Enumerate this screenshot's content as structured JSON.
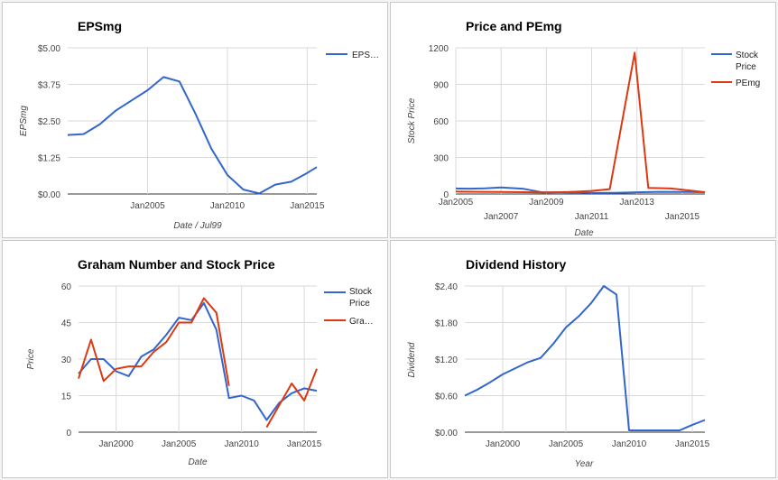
{
  "chart_data": [
    {
      "type": "line",
      "title": "EPSmg",
      "xlabel": "Date / Jul99",
      "ylabel": "EPSmg",
      "x_ticks": [
        "Jan2005",
        "Jan2010",
        "Jan2015"
      ],
      "y_ticks": [
        "$0.00",
        "$1.25",
        "$2.50",
        "$3.75",
        "$5.00"
      ],
      "ylim": [
        0,
        5
      ],
      "grid": true,
      "legend_position": "right",
      "series": [
        {
          "name": "EPS…",
          "color": "#3366cc",
          "points": [
            [
              2000.0,
              2.02
            ],
            [
              2001.0,
              2.05
            ],
            [
              2002.0,
              2.38
            ],
            [
              2003.0,
              2.85
            ],
            [
              2004.0,
              3.2
            ],
            [
              2005.0,
              3.55
            ],
            [
              2006.0,
              4.0
            ],
            [
              2007.0,
              3.85
            ],
            [
              2008.0,
              2.75
            ],
            [
              2009.0,
              1.55
            ],
            [
              2010.0,
              0.65
            ],
            [
              2011.0,
              0.15
            ],
            [
              2012.0,
              0.02
            ],
            [
              2013.0,
              0.32
            ],
            [
              2014.0,
              0.42
            ],
            [
              2015.0,
              0.72
            ],
            [
              2015.6,
              0.92
            ]
          ]
        }
      ]
    },
    {
      "type": "line",
      "title": "Price and PEmg",
      "xlabel": "Date",
      "ylabel": "Stock Price",
      "x_ticks": [
        "Jan2005",
        "Jan2007",
        "Jan2009",
        "Jan2011",
        "Jan2013",
        "Jan2015"
      ],
      "y_ticks": [
        "0",
        "300",
        "600",
        "900",
        "1200"
      ],
      "ylim": [
        0,
        1200
      ],
      "grid": true,
      "legend_position": "right",
      "series": [
        {
          "name": "Stock Price",
          "color": "#3366cc",
          "points": [
            [
              2005.0,
              45
            ],
            [
              2005.6,
              44
            ],
            [
              2006.3,
              47
            ],
            [
              2007.0,
              53
            ],
            [
              2008.0,
              42
            ],
            [
              2008.8,
              14
            ],
            [
              2009.5,
              14
            ],
            [
              2010.5,
              12
            ],
            [
              2011.0,
              8
            ],
            [
              2012.0,
              10
            ],
            [
              2013.0,
              14
            ],
            [
              2014.0,
              18
            ],
            [
              2015.0,
              17
            ],
            [
              2016.0,
              15
            ]
          ]
        },
        {
          "name": "PEmg",
          "color": "#dc3912",
          "points": [
            [
              2005.0,
              20
            ],
            [
              2006.0,
              18
            ],
            [
              2007.0,
              17
            ],
            [
              2008.0,
              15
            ],
            [
              2009.0,
              12
            ],
            [
              2010.0,
              16
            ],
            [
              2011.0,
              25
            ],
            [
              2011.8,
              40
            ],
            [
              2012.9,
              1160
            ],
            [
              2013.5,
              50
            ],
            [
              2014.5,
              45
            ],
            [
              2015.5,
              25
            ],
            [
              2016.0,
              15
            ]
          ]
        }
      ]
    },
    {
      "type": "line",
      "title": "Graham Number and Stock Price",
      "xlabel": "Date",
      "ylabel": "Price",
      "x_ticks": [
        "Jan2000",
        "Jan2005",
        "Jan2010",
        "Jan2015"
      ],
      "y_ticks": [
        "0",
        "15",
        "30",
        "45",
        "60"
      ],
      "ylim": [
        0,
        60
      ],
      "grid": true,
      "legend_position": "right",
      "series": [
        {
          "name": "Stock Price",
          "color": "#3366cc",
          "points": [
            [
              1997.0,
              24
            ],
            [
              1998.0,
              30
            ],
            [
              1999.0,
              30
            ],
            [
              2000.0,
              25
            ],
            [
              2001.0,
              23
            ],
            [
              2002.0,
              31
            ],
            [
              2003.0,
              34
            ],
            [
              2004.0,
              40
            ],
            [
              2005.0,
              47
            ],
            [
              2006.0,
              46
            ],
            [
              2007.0,
              53
            ],
            [
              2008.0,
              42
            ],
            [
              2009.0,
              14
            ],
            [
              2010.0,
              15
            ],
            [
              2011.0,
              13
            ],
            [
              2012.0,
              5
            ],
            [
              2013.0,
              12
            ],
            [
              2014.0,
              16
            ],
            [
              2015.0,
              18
            ],
            [
              2016.0,
              17
            ]
          ]
        },
        {
          "name": "Gra…",
          "color": "#dc3912",
          "points": [
            [
              1997.0,
              22
            ],
            [
              1998.0,
              38
            ],
            [
              1999.0,
              21
            ],
            [
              2000.0,
              26
            ],
            [
              2001.0,
              27
            ],
            [
              2002.0,
              27
            ],
            [
              2003.0,
              33
            ],
            [
              2004.0,
              37
            ],
            [
              2005.0,
              45
            ],
            [
              2006.0,
              45
            ],
            [
              2007.0,
              55
            ],
            [
              2008.0,
              49
            ],
            [
              2009.0,
              19
            ]
          ]
        },
        {
          "name": "Gra… (segment 2)",
          "color": "#dc3912",
          "points": [
            [
              2012.0,
              2
            ],
            [
              2013.0,
              11
            ],
            [
              2014.0,
              20
            ],
            [
              2015.0,
              13
            ],
            [
              2016.0,
              26
            ]
          ]
        }
      ]
    },
    {
      "type": "line",
      "title": "Dividend History",
      "xlabel": "Year",
      "ylabel": "Dividend",
      "x_ticks": [
        "Jan2000",
        "Jan2005",
        "Jan2010",
        "Jan2015"
      ],
      "y_ticks": [
        "$0.00",
        "$0.60",
        "$1.20",
        "$1.80",
        "$2.40"
      ],
      "ylim": [
        0,
        2.4
      ],
      "grid": true,
      "legend_position": "none",
      "series": [
        {
          "name": "",
          "color": "#3366cc",
          "points": [
            [
              1997.0,
              0.6
            ],
            [
              1998.0,
              0.7
            ],
            [
              1999.0,
              0.82
            ],
            [
              2000.0,
              0.95
            ],
            [
              2001.0,
              1.05
            ],
            [
              2002.0,
              1.15
            ],
            [
              2003.0,
              1.22
            ],
            [
              2004.0,
              1.45
            ],
            [
              2005.0,
              1.72
            ],
            [
              2006.0,
              1.9
            ],
            [
              2007.0,
              2.12
            ],
            [
              2008.0,
              2.4
            ],
            [
              2009.0,
              2.26
            ],
            [
              2010.0,
              0.03
            ],
            [
              2011.0,
              0.03
            ],
            [
              2012.0,
              0.03
            ],
            [
              2013.0,
              0.03
            ],
            [
              2014.0,
              0.03
            ],
            [
              2015.0,
              0.12
            ],
            [
              2016.0,
              0.2
            ]
          ]
        }
      ]
    }
  ]
}
